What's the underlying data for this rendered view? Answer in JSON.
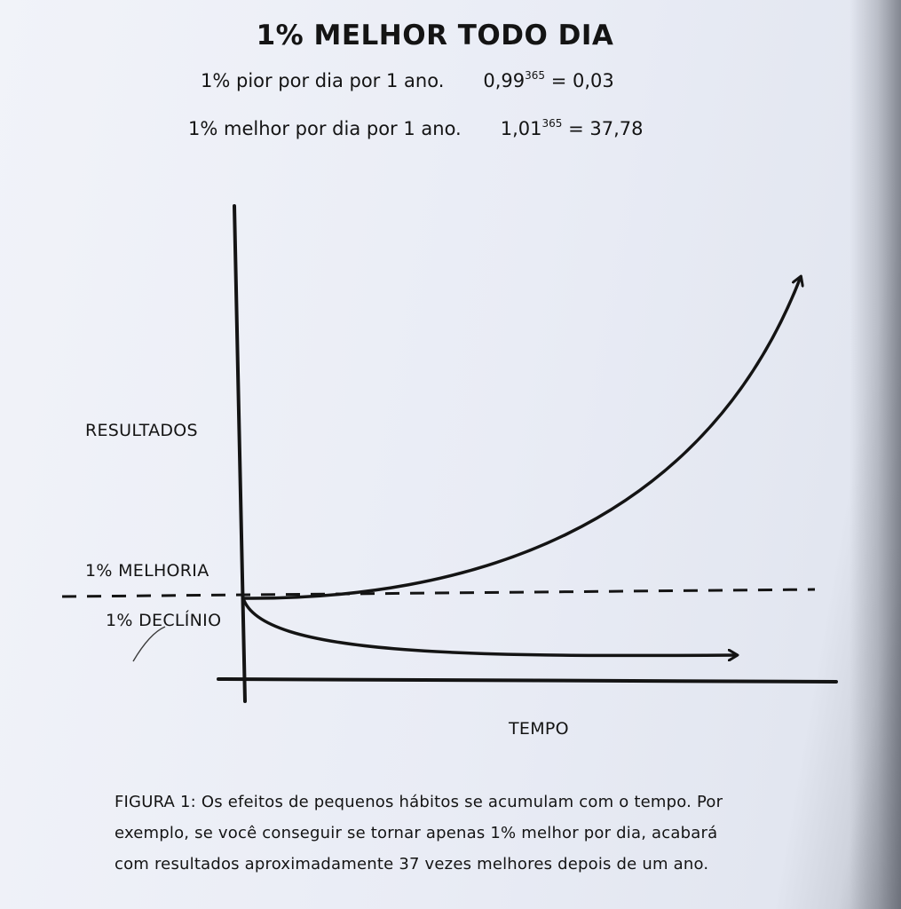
{
  "title": "1% MELHOR TODO DIA",
  "formulas": [
    {
      "text": "1% pior por dia por 1 ano.",
      "base": "0,99",
      "exp": "365",
      "result": "= 0,03"
    },
    {
      "text": "1% melhor por dia por 1 ano.",
      "base": "1,01",
      "exp": "365",
      "result": "= 37,78"
    }
  ],
  "diagram": {
    "y_axis_label": "RESULTADOS",
    "x_axis_label": "TEMPO",
    "improvement_label": "1% MELHORIA",
    "decline_label": "1% DECLÍNIO",
    "improvement_factor": 37.78,
    "decline_factor": 0.03
  },
  "caption": "FIGURA 1: Os efeitos de pequenos hábitos se acumulam com o tempo. Por exemplo, se você conseguir se tornar apenas 1% melhor por dia, acabará com resultados aproximadamente 37 vezes melhores depois de um ano.",
  "colors": {
    "ink": "#141414",
    "paper": "#ebeef6"
  }
}
